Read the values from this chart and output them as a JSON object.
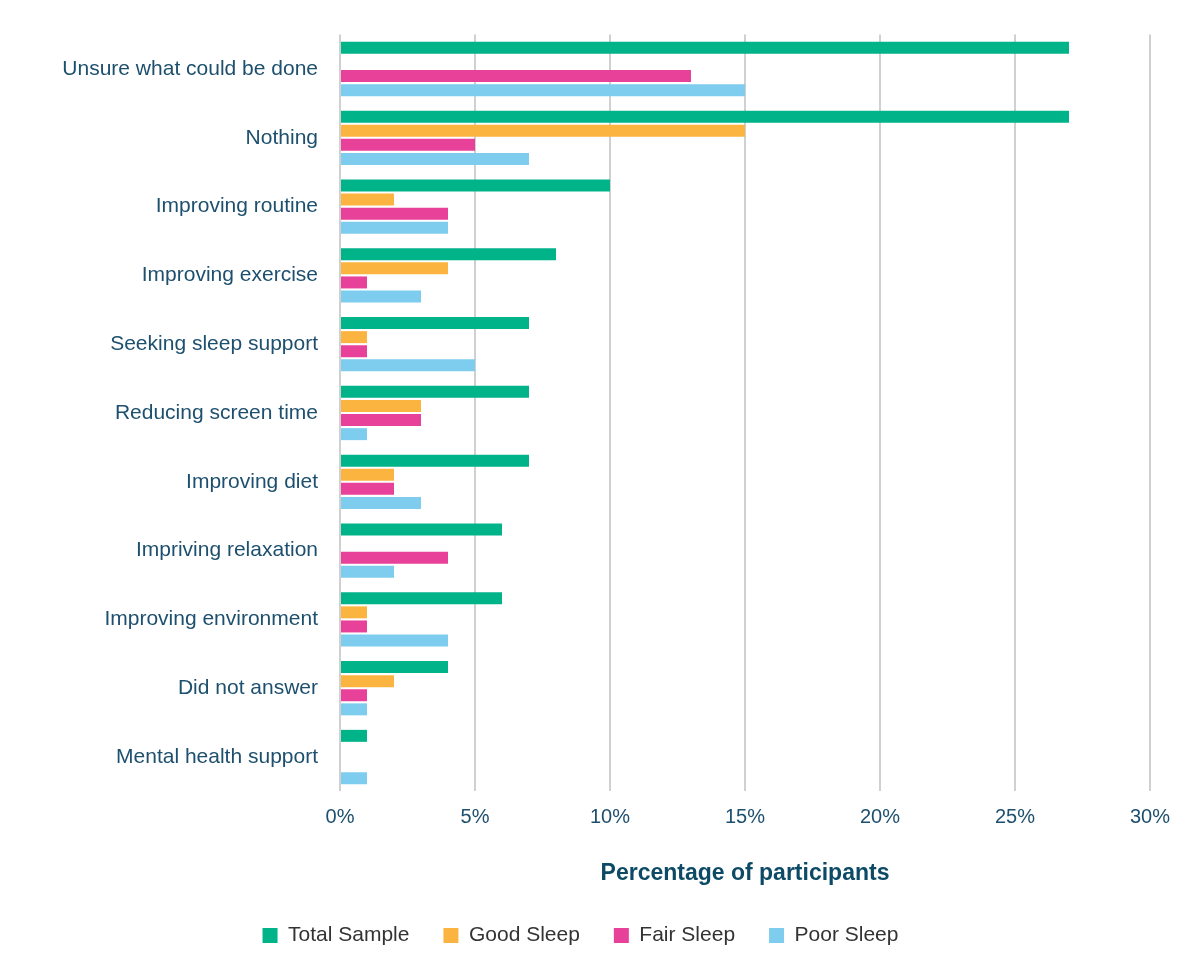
{
  "chart_data": {
    "type": "bar",
    "orientation": "horizontal",
    "xlabel": "Percentage of participants",
    "categories": [
      "Unsure what could be done",
      "Nothing",
      "Improving routine",
      "Improving exercise",
      "Seeking sleep support",
      "Reducing screen time",
      "Improving diet",
      "Impriving relaxation",
      "Improving environment",
      "Did not answer",
      "Mental health support"
    ],
    "series": [
      {
        "name": "Total Sample",
        "color": "#00b388",
        "values": [
          27,
          27,
          10,
          8,
          7,
          7,
          7,
          6,
          6,
          4,
          1
        ]
      },
      {
        "name": "Good Sleep",
        "color": "#fbb440",
        "values": [
          0,
          15,
          2,
          4,
          1,
          3,
          2,
          0,
          1,
          2,
          0
        ]
      },
      {
        "name": "Fair Sleep",
        "color": "#e8419a",
        "values": [
          13,
          5,
          4,
          1,
          1,
          3,
          2,
          4,
          1,
          1,
          0
        ]
      },
      {
        "name": "Poor Sleep",
        "color": "#7ecdee",
        "values": [
          15,
          7,
          4,
          3,
          5,
          1,
          3,
          2,
          4,
          1,
          1
        ]
      }
    ],
    "xlim": [
      0,
      30
    ],
    "xticks": [
      {
        "value": 0,
        "label": "0%"
      },
      {
        "value": 5,
        "label": "5%"
      },
      {
        "value": 10,
        "label": "10%"
      },
      {
        "value": 15,
        "label": "15%"
      },
      {
        "value": 20,
        "label": "20%"
      },
      {
        "value": 25,
        "label": "25%"
      },
      {
        "value": 30,
        "label": "30%"
      }
    ],
    "grid": "x",
    "legend": "bottom"
  }
}
